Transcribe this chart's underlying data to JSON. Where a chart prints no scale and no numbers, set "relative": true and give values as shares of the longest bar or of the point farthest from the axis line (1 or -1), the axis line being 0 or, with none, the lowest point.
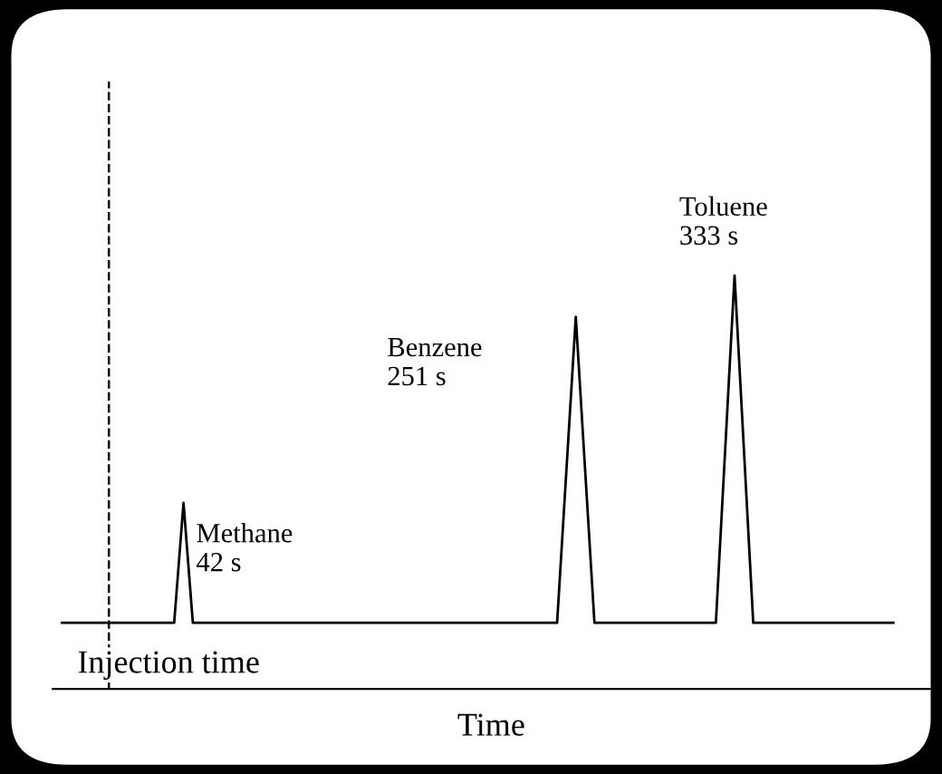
{
  "chart_data": {
    "type": "line",
    "relative": true,
    "xlabel": "Time",
    "legend": false,
    "marker": "none",
    "line_style": "solid",
    "categories": [
      null,
      null,
      null,
      null,
      null,
      null,
      null,
      null,
      null,
      null,
      null,
      null,
      null,
      null,
      null,
      null,
      null,
      null,
      null,
      null,
      null,
      null,
      null,
      null,
      null,
      null,
      null,
      null,
      null,
      null,
      null,
      null,
      null,
      null,
      null,
      null,
      null,
      null,
      null,
      null,
      null,
      null,
      null,
      null,
      null,
      null,
      null,
      null,
      null,
      null,
      null,
      null,
      null,
      null,
      null,
      null,
      null,
      null,
      null,
      null,
      null,
      null,
      null,
      null,
      null,
      null,
      null,
      null,
      null,
      null,
      null,
      null,
      null,
      null,
      null,
      null,
      null,
      null,
      null,
      null,
      null,
      null,
      null,
      null,
      null,
      null,
      null,
      null,
      null,
      null
    ],
    "series": [
      {
        "color": "#000000",
        "values": [
          0.16,
          0.16,
          0.16,
          0.16,
          0.16,
          0.16,
          0.16,
          0.16,
          0.16,
          0.16,
          0.16,
          0.16,
          0.16,
          0.45,
          0.16,
          0.16,
          0.16,
          0.16,
          0.16,
          0.16,
          0.16,
          0.16,
          0.16,
          0.16,
          0.16,
          0.16,
          0.16,
          0.16,
          0.16,
          0.16,
          0.16,
          0.16,
          0.16,
          0.16,
          0.16,
          0.16,
          0.16,
          0.16,
          0.16,
          0.16,
          0.16,
          0.16,
          0.16,
          0.16,
          0.16,
          0.16,
          0.16,
          0.16,
          0.16,
          0.16,
          0.16,
          0.16,
          0.16,
          0.16,
          0.53,
          0.9,
          0.53,
          0.16,
          0.16,
          0.16,
          0.16,
          0.16,
          0.16,
          0.16,
          0.16,
          0.16,
          0.16,
          0.16,
          0.16,
          0.16,
          0.16,
          0.58,
          1,
          0.58,
          0.16,
          0.16,
          0.16,
          0.16,
          0.16,
          0.16,
          0.16,
          0.16,
          0.16,
          0.16,
          0.16,
          0.16,
          0.16,
          0.16,
          0.16,
          0.16
        ]
      }
    ],
    "annotations": [
      "Methane\n42 s",
      "Benzene\n251 s",
      "Toluene\n333 s",
      "Injection time"
    ]
  }
}
